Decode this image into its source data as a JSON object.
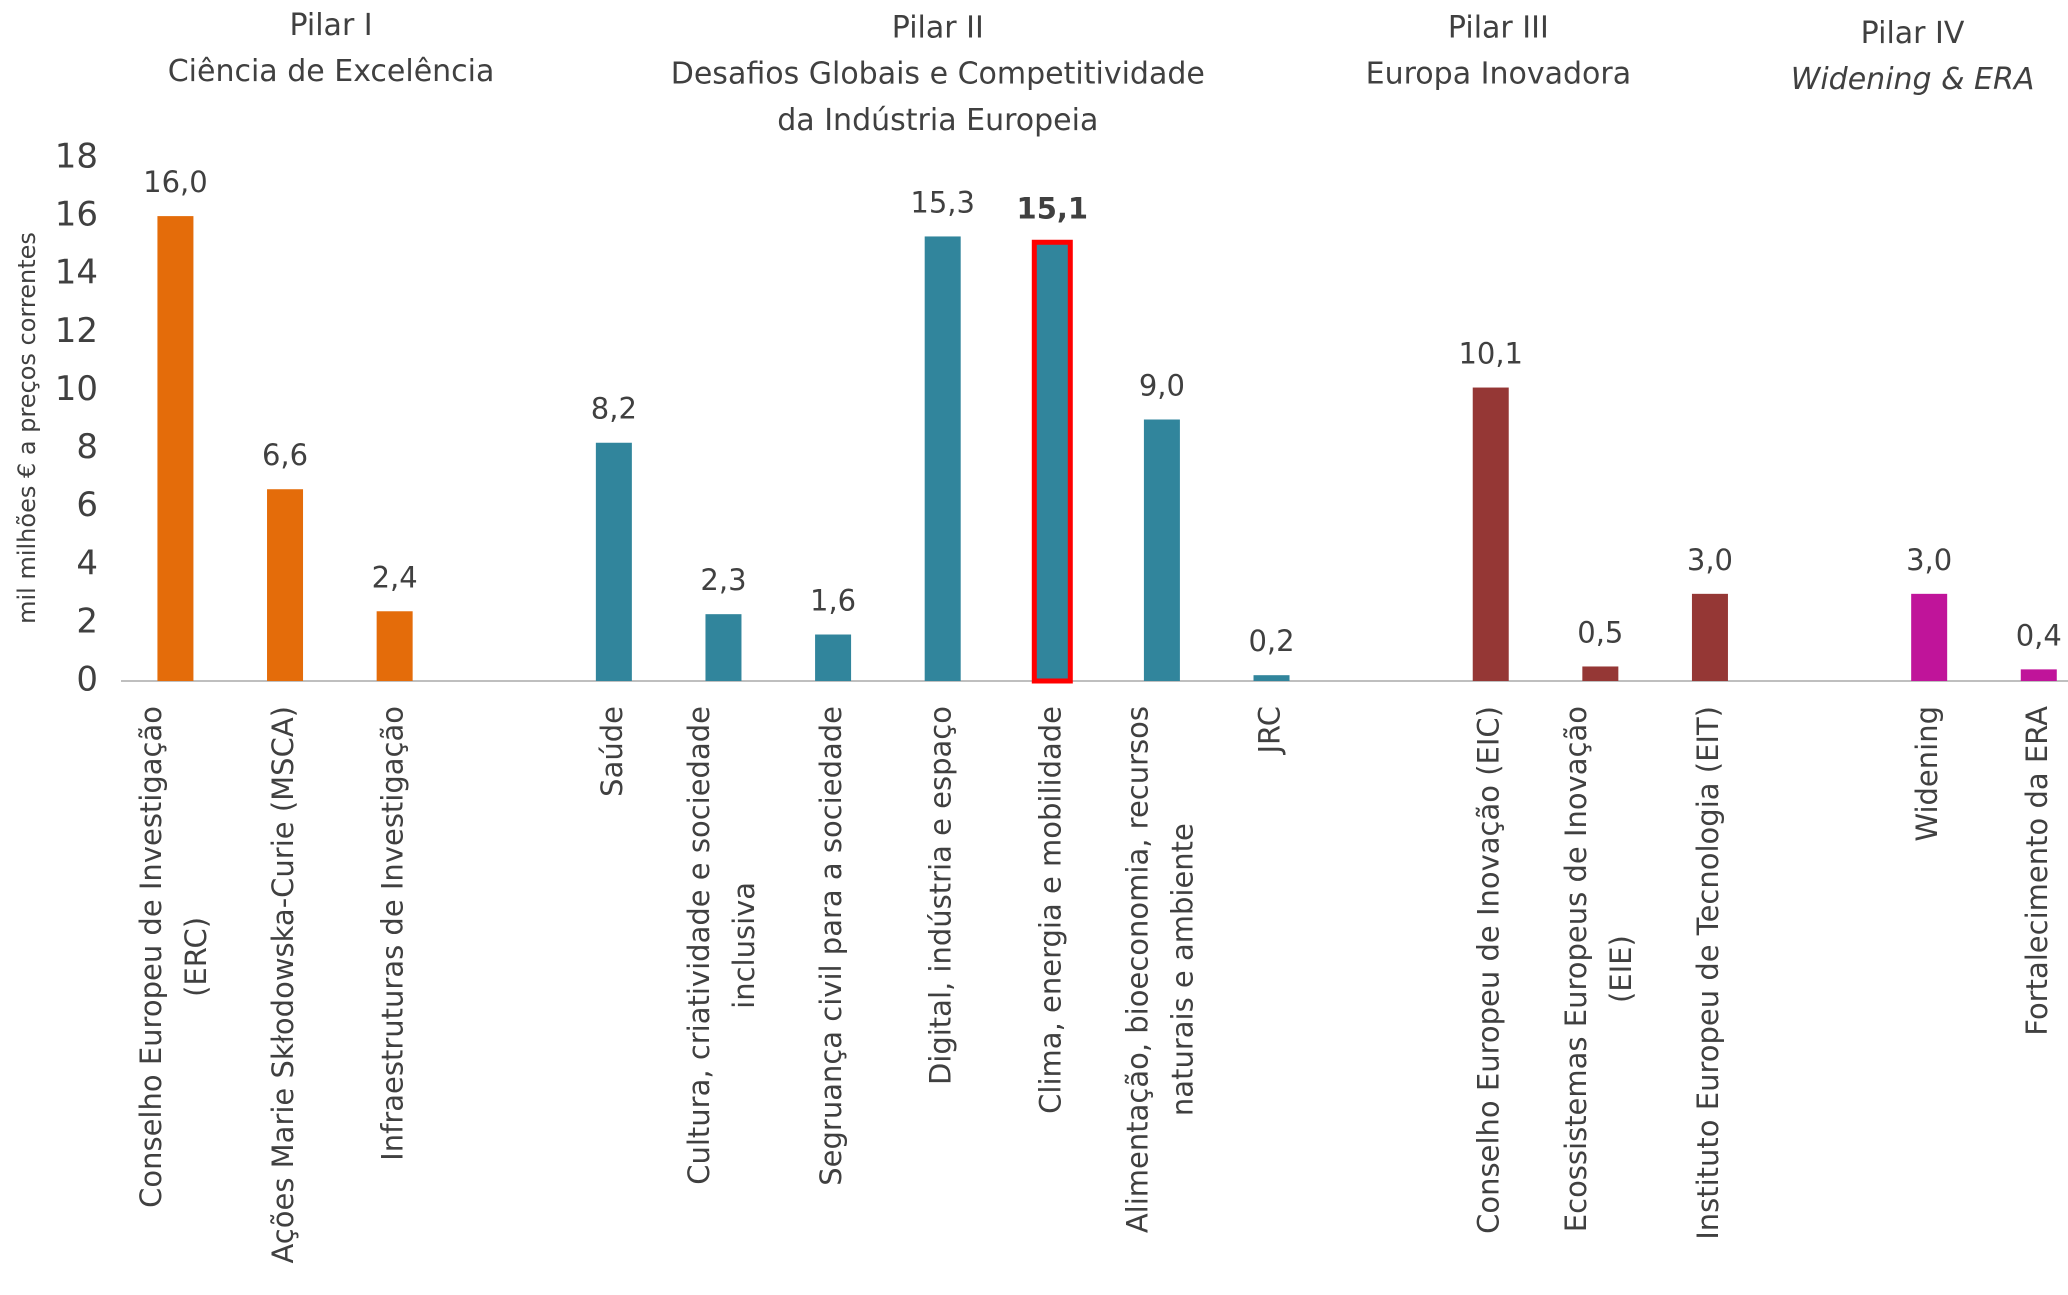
{
  "chart_data": {
    "type": "bar",
    "y_label": "mil milhões € a preços correntes",
    "ylim": [
      0,
      18
    ],
    "yticks": [
      0,
      2,
      4,
      6,
      8,
      10,
      12,
      14,
      16,
      18
    ],
    "groups": [
      {
        "title": [
          "Pilar I",
          "Ciência de Excelência"
        ],
        "color": "#e46c0a",
        "categories": [
          [
            "Conselho Europeu de Investigação",
            "(ERC)"
          ],
          [
            "Ações Marie Skłodowska-Curie (MSCA)"
          ],
          [
            "Infraestruturas de Investigação"
          ]
        ],
        "values": [
          16.0,
          6.6,
          2.4
        ],
        "value_labels": [
          "16,0",
          "6,6",
          "2,4"
        ]
      },
      {
        "title": [
          "Pilar II",
          "Desafios Globais e Competitividade",
          "da Indústria Europeia"
        ],
        "color": "#31859c",
        "categories": [
          [
            "Saúde"
          ],
          [
            "Cultura, criatividade e sociedade",
            "inclusiva"
          ],
          [
            "Segruança civil para a sociedade"
          ],
          [
            "Digital, indústria e espaço"
          ],
          [
            "Clima, energia e mobilidade"
          ],
          [
            "Alimentação, bioeconomia, recursos",
            "naturais e ambiente"
          ],
          [
            "JRC"
          ]
        ],
        "values": [
          8.2,
          2.3,
          1.6,
          15.3,
          15.1,
          9.0,
          0.2
        ],
        "value_labels": [
          "8,2",
          "2,3",
          "1,6",
          "15,3",
          "15,1",
          "9,0",
          "0,2"
        ],
        "highlight": 4,
        "highlight_color": "#ff0000"
      },
      {
        "title": [
          "Pilar III",
          "Europa Inovadora"
        ],
        "color": "#953735",
        "categories": [
          [
            "Conselho Europeu de Inovação (EIC)"
          ],
          [
            "Ecossistemas Europeus de Inovação",
            "(EIE)"
          ],
          [
            "Instituto Europeu de Tecnologia (EIT)"
          ]
        ],
        "values": [
          10.1,
          0.5,
          3.0
        ],
        "value_labels": [
          "10,1",
          "0,5",
          "3,0"
        ]
      },
      {
        "title": [
          "Pilar IV",
          "Widening & ERA"
        ],
        "title_italic": [
          false,
          true
        ],
        "color": "#c0149a",
        "categories": [
          [
            "Widening"
          ],
          [
            "Fortalecimento da ERA"
          ]
        ],
        "values": [
          3.0,
          0.4
        ],
        "value_labels": [
          "3,0",
          "0,4"
        ]
      }
    ]
  }
}
